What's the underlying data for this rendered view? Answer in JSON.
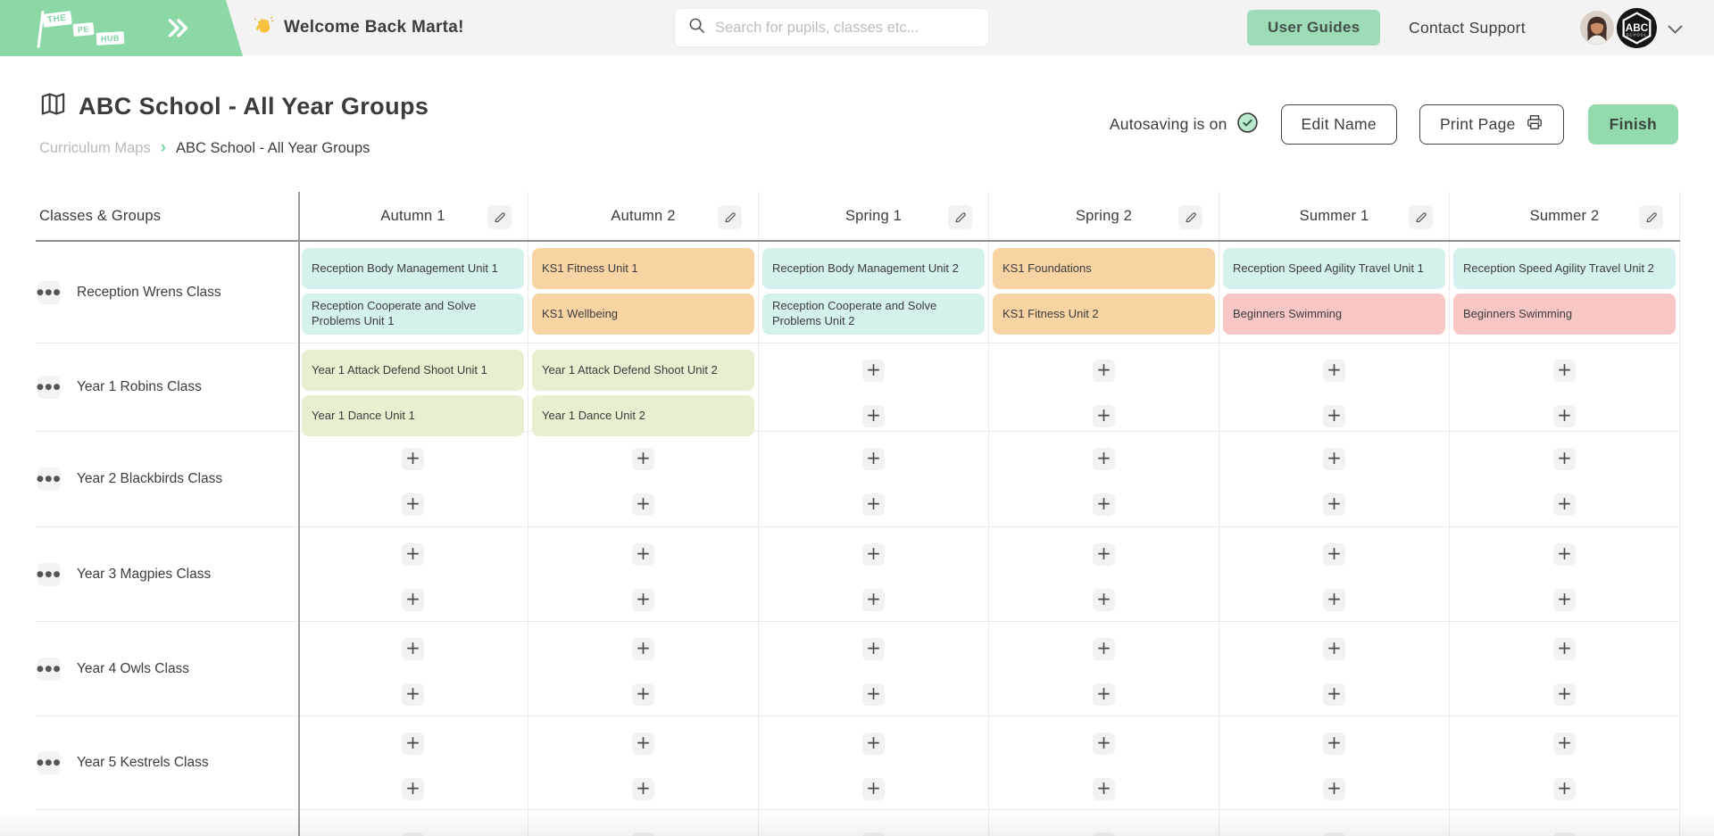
{
  "brand": {
    "logo_words": [
      "THE",
      "PE",
      "HUB"
    ]
  },
  "header": {
    "welcome": "Welcome Back Marta!",
    "search_placeholder": "Search for pupils, classes etc...",
    "user_guides_label": "User Guides",
    "contact_support_label": "Contact Support",
    "school_badge": {
      "line1": "ABC",
      "line2": "SCHOOL"
    }
  },
  "page": {
    "title": "ABC School - All Year Groups",
    "breadcrumb": {
      "parent": "Curriculum Maps",
      "separator": "›",
      "current": "ABC School - All Year Groups"
    },
    "autosave_status": "Autosaving is on",
    "edit_name_label": "Edit Name",
    "print_page_label": "Print Page",
    "finish_label": "Finish"
  },
  "icons": {
    "add": "+",
    "menu": "●●●"
  },
  "colors": {
    "brand_green": "#8bd7a6",
    "action_green": "#9ddcb6",
    "chip_cyan": "#d5f1ed",
    "chip_orange": "#f8d4a4",
    "chip_green": "#e6efd0",
    "chip_pink": "#f8c7c5"
  },
  "table": {
    "corner_header": "Classes & Groups",
    "columns": [
      "Autumn 1",
      "Autumn 2",
      "Spring 1",
      "Spring 2",
      "Summer 1",
      "Summer 2"
    ],
    "rows": [
      {
        "name": "Reception Wrens Class",
        "cells": [
          [
            {
              "t": "unit",
              "label": "Reception Body Management Unit 1",
              "color": "cyan"
            },
            {
              "t": "unit",
              "label": "Reception Cooperate and Solve Problems Unit 1",
              "color": "cyan"
            }
          ],
          [
            {
              "t": "unit",
              "label": "KS1 Fitness Unit 1",
              "color": "orange"
            },
            {
              "t": "unit",
              "label": "KS1 Wellbeing",
              "color": "orange"
            }
          ],
          [
            {
              "t": "unit",
              "label": "Reception Body Management Unit 2",
              "color": "cyan"
            },
            {
              "t": "unit",
              "label": "Reception Cooperate and Solve Problems Unit 2",
              "color": "cyan"
            }
          ],
          [
            {
              "t": "unit",
              "label": "KS1 Foundations",
              "color": "orange"
            },
            {
              "t": "unit",
              "label": "KS1 Fitness Unit 2",
              "color": "orange"
            }
          ],
          [
            {
              "t": "unit",
              "label": "Reception Speed Agility Travel Unit 1",
              "color": "cyan"
            },
            {
              "t": "unit",
              "label": "Beginners Swimming",
              "color": "pink"
            }
          ],
          [
            {
              "t": "unit",
              "label": "Reception Speed Agility Travel Unit 2",
              "color": "cyan"
            },
            {
              "t": "unit",
              "label": "Beginners Swimming",
              "color": "pink"
            }
          ]
        ]
      },
      {
        "name": "Year 1 Robins Class",
        "cells": [
          [
            {
              "t": "unit",
              "label": "Year 1 Attack Defend Shoot Unit 1",
              "color": "green"
            },
            {
              "t": "unit",
              "label": "Year 1 Dance Unit 1",
              "color": "green"
            }
          ],
          [
            {
              "t": "unit",
              "label": "Year 1 Attack Defend Shoot Unit 2",
              "color": "green"
            },
            {
              "t": "unit",
              "label": "Year 1 Dance Unit 2",
              "color": "green"
            }
          ],
          [
            {
              "t": "add"
            },
            {
              "t": "add"
            }
          ],
          [
            {
              "t": "add"
            },
            {
              "t": "add"
            }
          ],
          [
            {
              "t": "add"
            },
            {
              "t": "add"
            }
          ],
          [
            {
              "t": "add"
            },
            {
              "t": "add"
            }
          ]
        ]
      },
      {
        "name": "Year 2 Blackbirds Class",
        "cells": [
          [
            {
              "t": "add"
            },
            {
              "t": "add"
            }
          ],
          [
            {
              "t": "add"
            },
            {
              "t": "add"
            }
          ],
          [
            {
              "t": "add"
            },
            {
              "t": "add"
            }
          ],
          [
            {
              "t": "add"
            },
            {
              "t": "add"
            }
          ],
          [
            {
              "t": "add"
            },
            {
              "t": "add"
            }
          ],
          [
            {
              "t": "add"
            },
            {
              "t": "add"
            }
          ]
        ]
      },
      {
        "name": "Year 3 Magpies Class",
        "cells": [
          [
            {
              "t": "add"
            },
            {
              "t": "add"
            }
          ],
          [
            {
              "t": "add"
            },
            {
              "t": "add"
            }
          ],
          [
            {
              "t": "add"
            },
            {
              "t": "add"
            }
          ],
          [
            {
              "t": "add"
            },
            {
              "t": "add"
            }
          ],
          [
            {
              "t": "add"
            },
            {
              "t": "add"
            }
          ],
          [
            {
              "t": "add"
            },
            {
              "t": "add"
            }
          ]
        ]
      },
      {
        "name": "Year 4 Owls Class",
        "cells": [
          [
            {
              "t": "add"
            },
            {
              "t": "add"
            }
          ],
          [
            {
              "t": "add"
            },
            {
              "t": "add"
            }
          ],
          [
            {
              "t": "add"
            },
            {
              "t": "add"
            }
          ],
          [
            {
              "t": "add"
            },
            {
              "t": "add"
            }
          ],
          [
            {
              "t": "add"
            },
            {
              "t": "add"
            }
          ],
          [
            {
              "t": "add"
            },
            {
              "t": "add"
            }
          ]
        ]
      },
      {
        "name": "Year 5 Kestrels Class",
        "cells": [
          [
            {
              "t": "add"
            },
            {
              "t": "add"
            }
          ],
          [
            {
              "t": "add"
            },
            {
              "t": "add"
            }
          ],
          [
            {
              "t": "add"
            },
            {
              "t": "add"
            }
          ],
          [
            {
              "t": "add"
            },
            {
              "t": "add"
            }
          ],
          [
            {
              "t": "add"
            },
            {
              "t": "add"
            }
          ],
          [
            {
              "t": "add"
            },
            {
              "t": "add"
            }
          ]
        ]
      },
      {
        "name": "",
        "partial": true,
        "cells": [
          [
            {
              "t": "add"
            }
          ],
          [
            {
              "t": "add"
            }
          ],
          [
            {
              "t": "add"
            }
          ],
          [
            {
              "t": "add"
            }
          ],
          [
            {
              "t": "add"
            }
          ],
          [
            {
              "t": "add"
            }
          ]
        ]
      }
    ]
  }
}
